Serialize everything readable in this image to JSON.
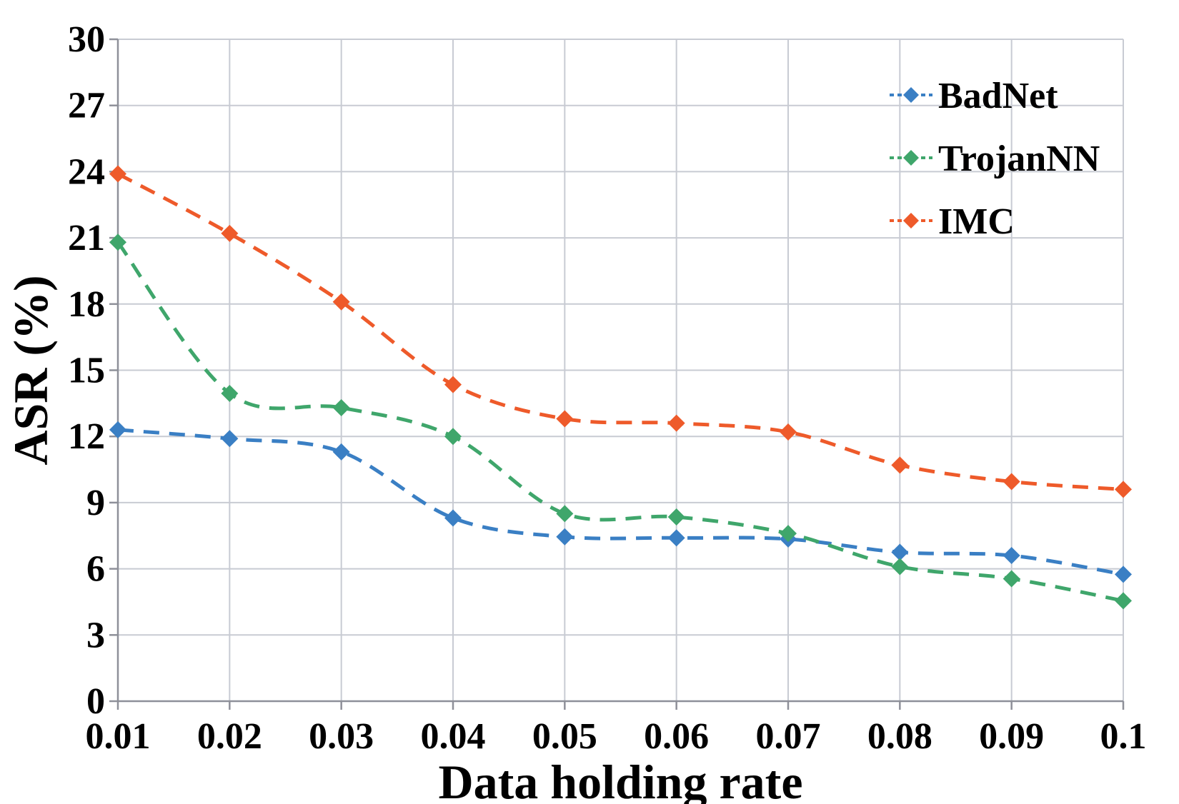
{
  "chart_data": {
    "type": "line",
    "xlabel": "Data holding rate",
    "ylabel": "ASR (%)",
    "x": [
      "0.01",
      "0.02",
      "0.03",
      "0.04",
      "0.05",
      "0.06",
      "0.07",
      "0.08",
      "0.09",
      "0.1"
    ],
    "ylim": [
      0,
      30
    ],
    "yticks": [
      "0",
      "3",
      "6",
      "9",
      "12",
      "15",
      "18",
      "21",
      "24",
      "27",
      "30"
    ],
    "grid": true,
    "line_style": "dashed",
    "legend_position": "top-right",
    "series": [
      {
        "name": "BadNet",
        "color": "#3a7fc4",
        "values": [
          12.3,
          11.9,
          11.3,
          8.3,
          7.45,
          7.4,
          7.35,
          6.75,
          6.6,
          5.75
        ]
      },
      {
        "name": "TrojanNN",
        "color": "#3fa66b",
        "values": [
          20.8,
          13.95,
          13.3,
          12.0,
          8.5,
          8.35,
          7.6,
          6.1,
          5.55,
          4.55
        ]
      },
      {
        "name": "IMC",
        "color": "#ee5a2a",
        "values": [
          23.9,
          21.2,
          18.1,
          14.35,
          12.8,
          12.6,
          12.2,
          10.7,
          9.95,
          9.6
        ]
      }
    ]
  }
}
